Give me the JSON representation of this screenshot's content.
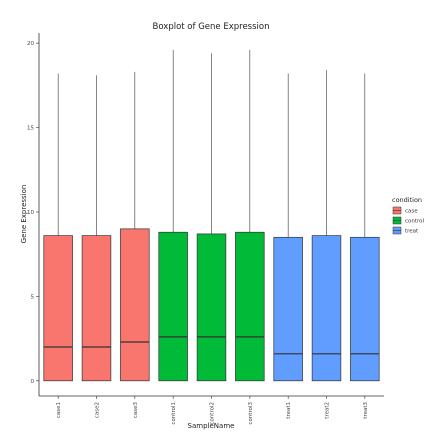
{
  "chart_data": {
    "type": "box",
    "title": "Boxplot of Gene Expression",
    "xlabel": "SampleName",
    "ylabel": "Gene Expression",
    "ylim": [
      -0.9,
      20.6
    ],
    "yticks": [
      0,
      5,
      10,
      15,
      20
    ],
    "grid": false,
    "legend": {
      "title": "condition",
      "position": "right",
      "entries": [
        {
          "name": "case",
          "color": "#F8766D"
        },
        {
          "name": "control",
          "color": "#00BA38"
        },
        {
          "name": "treat",
          "color": "#619CFF"
        }
      ]
    },
    "categories": [
      "case1",
      "case2",
      "case3",
      "control1",
      "control2",
      "control3",
      "treat1",
      "treat2",
      "treat3"
    ],
    "boxes": [
      {
        "sample": "case1",
        "condition": "case",
        "min": 0,
        "q1": 0,
        "median": 2.0,
        "q3": 8.6,
        "max": 18.2
      },
      {
        "sample": "case2",
        "condition": "case",
        "min": 0,
        "q1": 0,
        "median": 2.0,
        "q3": 8.6,
        "max": 18.1
      },
      {
        "sample": "case3",
        "condition": "case",
        "min": 0,
        "q1": 0,
        "median": 2.3,
        "q3": 9.0,
        "max": 18.3
      },
      {
        "sample": "control1",
        "condition": "control",
        "min": 0,
        "q1": 0,
        "median": 2.6,
        "q3": 8.8,
        "max": 19.6
      },
      {
        "sample": "control2",
        "condition": "control",
        "min": 0,
        "q1": 0,
        "median": 2.6,
        "q3": 8.7,
        "max": 19.4
      },
      {
        "sample": "control3",
        "condition": "control",
        "min": 0,
        "q1": 0,
        "median": 2.6,
        "q3": 8.8,
        "max": 19.6
      },
      {
        "sample": "treat1",
        "condition": "treat",
        "min": 0,
        "q1": 0,
        "median": 1.6,
        "q3": 8.5,
        "max": 18.2
      },
      {
        "sample": "treat2",
        "condition": "treat",
        "min": 0,
        "q1": 0,
        "median": 1.6,
        "q3": 8.6,
        "max": 18.4
      },
      {
        "sample": "treat3",
        "condition": "treat",
        "min": 0,
        "q1": 0,
        "median": 1.6,
        "q3": 8.5,
        "max": 18.2
      }
    ]
  }
}
